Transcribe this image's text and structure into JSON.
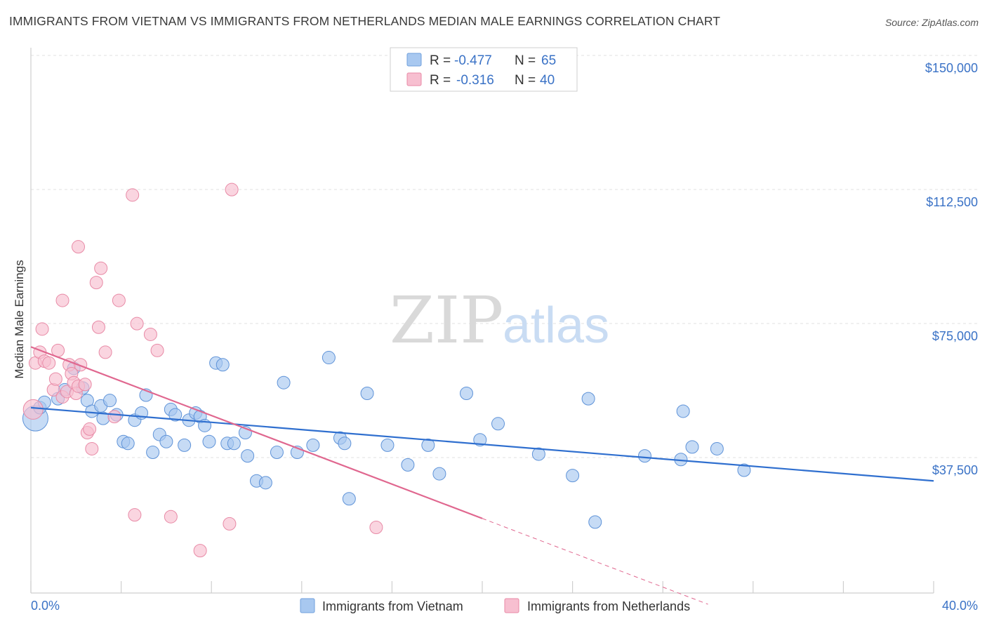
{
  "title": "IMMIGRANTS FROM VIETNAM VS IMMIGRANTS FROM NETHERLANDS MEDIAN MALE EARNINGS CORRELATION CHART",
  "source": "Source: ZipAtlas.com",
  "watermark": {
    "zip": "ZIP",
    "atlas": "atlas"
  },
  "legend": {
    "r_label": "R =",
    "n_label": "N =",
    "rows": [
      {
        "r": "-0.477",
        "n": "65",
        "color": "#a8c8f0",
        "stroke": "#6f9fdc"
      },
      {
        "r": "-0.316",
        "n": "40",
        "color": "#f7bfd0",
        "stroke": "#e88aa6"
      }
    ]
  },
  "chart_data": {
    "type": "scatter",
    "ylabel": "Median Male Earnings",
    "xlim": [
      0,
      40
    ],
    "ylim": [
      0,
      150000
    ],
    "x_tick_labels": [
      "0.0%",
      "40.0%"
    ],
    "y_ticks": [
      {
        "value": 37500,
        "label": "$37,500"
      },
      {
        "value": 75000,
        "label": "$75,000"
      },
      {
        "value": 112500,
        "label": "$112,500"
      },
      {
        "value": 150000,
        "label": "$150,000"
      }
    ],
    "series": [
      {
        "name": "Immigrants from Vietnam",
        "color": "#a8c8f0",
        "stroke": "#5f93d8",
        "line_color": "#2f6fcf",
        "trend": {
          "x0": 0,
          "y0": 55000,
          "x1": 40,
          "y1": 34500
        },
        "points": [
          [
            0.2,
            52000,
            18
          ],
          [
            0.4,
            55000,
            9
          ],
          [
            0.6,
            56500,
            9
          ],
          [
            1.2,
            57500,
            9
          ],
          [
            1.5,
            60000,
            9
          ],
          [
            1.9,
            66000,
            9
          ],
          [
            2.3,
            60500,
            9
          ],
          [
            2.5,
            57000,
            9
          ],
          [
            2.7,
            54000,
            9
          ],
          [
            3.1,
            55500,
            9
          ],
          [
            3.2,
            52000,
            9
          ],
          [
            3.5,
            57000,
            9
          ],
          [
            3.8,
            53000,
            9
          ],
          [
            4.1,
            45500,
            9
          ],
          [
            4.3,
            45000,
            9
          ],
          [
            4.6,
            51500,
            9
          ],
          [
            4.9,
            53500,
            9
          ],
          [
            5.1,
            58500,
            9
          ],
          [
            5.4,
            42500,
            9
          ],
          [
            5.7,
            47500,
            9
          ],
          [
            6.0,
            45500,
            9
          ],
          [
            6.2,
            54500,
            9
          ],
          [
            6.4,
            53000,
            9
          ],
          [
            6.8,
            44500,
            9
          ],
          [
            7.0,
            51500,
            9
          ],
          [
            7.3,
            53500,
            9
          ],
          [
            7.5,
            52500,
            9
          ],
          [
            7.7,
            50000,
            9
          ],
          [
            7.9,
            45500,
            9
          ],
          [
            8.2,
            67500,
            9
          ],
          [
            8.5,
            67000,
            9
          ],
          [
            8.7,
            45000,
            9
          ],
          [
            9.0,
            45000,
            9
          ],
          [
            9.5,
            48000,
            9
          ],
          [
            9.6,
            41500,
            9
          ],
          [
            10.0,
            34500,
            9
          ],
          [
            10.4,
            34000,
            9
          ],
          [
            10.9,
            42500,
            9
          ],
          [
            11.2,
            62000,
            9
          ],
          [
            11.8,
            42500,
            9
          ],
          [
            12.5,
            44500,
            9
          ],
          [
            13.2,
            69000,
            9
          ],
          [
            13.7,
            46500,
            9
          ],
          [
            13.9,
            45000,
            9
          ],
          [
            14.1,
            29500,
            9
          ],
          [
            14.9,
            59000,
            9
          ],
          [
            15.8,
            44500,
            9
          ],
          [
            16.7,
            39000,
            9
          ],
          [
            17.6,
            44500,
            9
          ],
          [
            18.1,
            36500,
            9
          ],
          [
            19.3,
            59000,
            9
          ],
          [
            19.9,
            46000,
            9
          ],
          [
            20.7,
            50500,
            9
          ],
          [
            22.5,
            42000,
            9
          ],
          [
            24.0,
            36000,
            9
          ],
          [
            24.7,
            57500,
            9
          ],
          [
            25.0,
            23000,
            9
          ],
          [
            27.2,
            41500,
            9
          ],
          [
            28.8,
            40500,
            9
          ],
          [
            28.9,
            54000,
            9
          ],
          [
            29.3,
            44000,
            9
          ],
          [
            30.4,
            43500,
            9
          ],
          [
            31.6,
            37500,
            9
          ]
        ]
      },
      {
        "name": "Immigrants from Netherlands",
        "color": "#f7bfd0",
        "stroke": "#e88aa6",
        "line_color": "#e0678f",
        "trend": {
          "x0": 0,
          "y0": 72000,
          "x1": 20,
          "y1": 24000
        },
        "trend_dashed": {
          "x0": 20,
          "y0": 24000,
          "x1": 30,
          "y1": 0
        },
        "points": [
          [
            0.1,
            54500,
            14
          ],
          [
            0.2,
            67500,
            9
          ],
          [
            0.4,
            70500,
            9
          ],
          [
            0.5,
            77000,
            9
          ],
          [
            0.6,
            68000,
            9
          ],
          [
            0.8,
            67500,
            9
          ],
          [
            1.0,
            60000,
            9
          ],
          [
            1.1,
            63000,
            9
          ],
          [
            1.2,
            71000,
            9
          ],
          [
            1.4,
            58000,
            9
          ],
          [
            1.4,
            85000,
            9
          ],
          [
            1.6,
            59500,
            9
          ],
          [
            1.7,
            67000,
            9
          ],
          [
            1.8,
            64500,
            9
          ],
          [
            1.9,
            62000,
            9
          ],
          [
            2.0,
            59000,
            9
          ],
          [
            2.1,
            61000,
            9
          ],
          [
            2.1,
            100000,
            9
          ],
          [
            2.2,
            67000,
            9
          ],
          [
            2.4,
            61500,
            9
          ],
          [
            2.5,
            48000,
            9
          ],
          [
            2.6,
            49000,
            9
          ],
          [
            2.7,
            43500,
            9
          ],
          [
            2.9,
            90000,
            9
          ],
          [
            3.0,
            77500,
            9
          ],
          [
            3.1,
            94000,
            9
          ],
          [
            3.3,
            70500,
            9
          ],
          [
            3.7,
            52500,
            9
          ],
          [
            3.9,
            85000,
            9
          ],
          [
            4.5,
            114500,
            9
          ],
          [
            4.6,
            25000,
            9
          ],
          [
            4.7,
            78500,
            9
          ],
          [
            5.3,
            75500,
            9
          ],
          [
            5.6,
            71000,
            9
          ],
          [
            6.2,
            24500,
            9
          ],
          [
            7.5,
            15000,
            9
          ],
          [
            8.8,
            22500,
            9
          ],
          [
            8.9,
            116000,
            9
          ],
          [
            15.3,
            21500,
            9
          ]
        ]
      }
    ]
  }
}
